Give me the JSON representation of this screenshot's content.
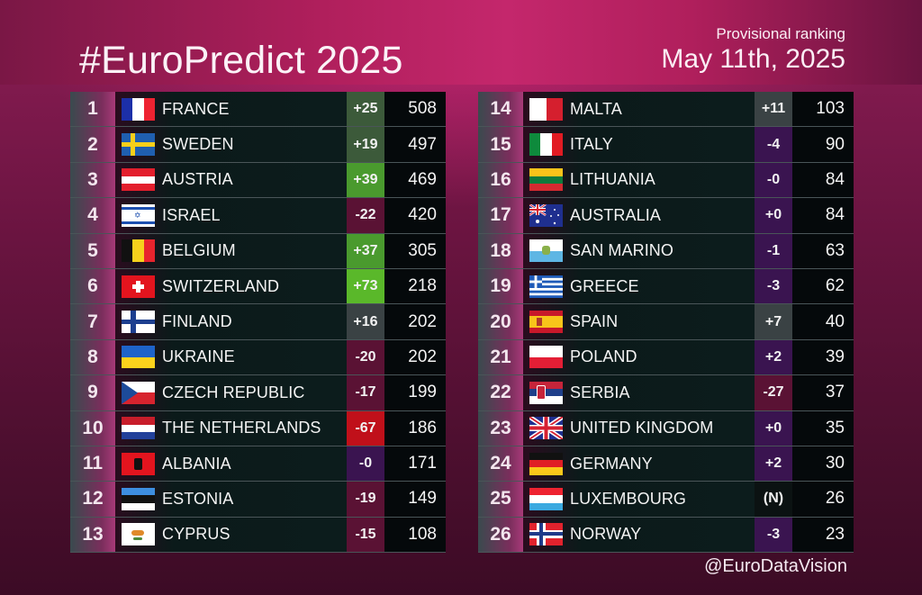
{
  "header": {
    "title": "#EuroPredict 2025",
    "subtitle": "Provisional ranking",
    "date": "May 11th, 2025"
  },
  "footer": {
    "handle": "@EuroDataVision"
  },
  "colors": {
    "change_green_strong": "#5ab82a",
    "change_green": "#4a9a2e",
    "change_green_muted": "#3c5a3a",
    "change_gray": "#3a4244",
    "change_maroon": "#5a1234",
    "change_red": "#c0101a",
    "change_purple": "#3a1450",
    "change_neutral": "#0b1212"
  },
  "left_table": [
    {
      "rank": "1",
      "country": "FRANCE",
      "flag": "fr",
      "change": "+25",
      "points": "508",
      "tone": "change_green_muted"
    },
    {
      "rank": "2",
      "country": "SWEDEN",
      "flag": "se",
      "change": "+19",
      "points": "497",
      "tone": "change_green_muted"
    },
    {
      "rank": "3",
      "country": "AUSTRIA",
      "flag": "at",
      "change": "+39",
      "points": "469",
      "tone": "change_green"
    },
    {
      "rank": "4",
      "country": "ISRAEL",
      "flag": "il",
      "change": "-22",
      "points": "420",
      "tone": "change_maroon"
    },
    {
      "rank": "5",
      "country": "BELGIUM",
      "flag": "be",
      "change": "+37",
      "points": "305",
      "tone": "change_green"
    },
    {
      "rank": "6",
      "country": "SWITZERLAND",
      "flag": "ch",
      "change": "+73",
      "points": "218",
      "tone": "change_green_strong"
    },
    {
      "rank": "7",
      "country": "FINLAND",
      "flag": "fi",
      "change": "+16",
      "points": "202",
      "tone": "change_gray"
    },
    {
      "rank": "8",
      "country": "UKRAINE",
      "flag": "ua",
      "change": "-20",
      "points": "202",
      "tone": "change_maroon"
    },
    {
      "rank": "9",
      "country": "CZECH REPUBLIC",
      "flag": "cz",
      "change": "-17",
      "points": "199",
      "tone": "change_maroon"
    },
    {
      "rank": "10",
      "country": "THE NETHERLANDS",
      "flag": "nl",
      "change": "-67",
      "points": "186",
      "tone": "change_red"
    },
    {
      "rank": "11",
      "country": "ALBANIA",
      "flag": "al",
      "change": "-0",
      "points": "171",
      "tone": "change_purple"
    },
    {
      "rank": "12",
      "country": "ESTONIA",
      "flag": "ee",
      "change": "-19",
      "points": "149",
      "tone": "change_maroon"
    },
    {
      "rank": "13",
      "country": "CYPRUS",
      "flag": "cy",
      "change": "-15",
      "points": "108",
      "tone": "change_maroon"
    }
  ],
  "right_table": [
    {
      "rank": "14",
      "country": "MALTA",
      "flag": "mt",
      "change": "+11",
      "points": "103",
      "tone": "change_gray"
    },
    {
      "rank": "15",
      "country": "ITALY",
      "flag": "it",
      "change": "-4",
      "points": "90",
      "tone": "change_purple"
    },
    {
      "rank": "16",
      "country": "LITHUANIA",
      "flag": "lt",
      "change": "-0",
      "points": "84",
      "tone": "change_purple"
    },
    {
      "rank": "17",
      "country": "AUSTRALIA",
      "flag": "au",
      "change": "+0",
      "points": "84",
      "tone": "change_purple"
    },
    {
      "rank": "18",
      "country": "SAN MARINO",
      "flag": "sm",
      "change": "-1",
      "points": "63",
      "tone": "change_purple"
    },
    {
      "rank": "19",
      "country": "GREECE",
      "flag": "gr",
      "change": "-3",
      "points": "62",
      "tone": "change_purple"
    },
    {
      "rank": "20",
      "country": "SPAIN",
      "flag": "es",
      "change": "+7",
      "points": "40",
      "tone": "change_gray"
    },
    {
      "rank": "21",
      "country": "POLAND",
      "flag": "pl",
      "change": "+2",
      "points": "39",
      "tone": "change_purple"
    },
    {
      "rank": "22",
      "country": "SERBIA",
      "flag": "rs",
      "change": "-27",
      "points": "37",
      "tone": "change_maroon"
    },
    {
      "rank": "23",
      "country": "UNITED KINGDOM",
      "flag": "gb",
      "change": "+0",
      "points": "35",
      "tone": "change_purple"
    },
    {
      "rank": "24",
      "country": "GERMANY",
      "flag": "de",
      "change": "+2",
      "points": "30",
      "tone": "change_purple"
    },
    {
      "rank": "25",
      "country": "LUXEMBOURG",
      "flag": "lu",
      "change": "(N)",
      "points": "26",
      "tone": "change_neutral"
    },
    {
      "rank": "26",
      "country": "NORWAY",
      "flag": "no",
      "change": "-3",
      "points": "23",
      "tone": "change_purple"
    }
  ]
}
